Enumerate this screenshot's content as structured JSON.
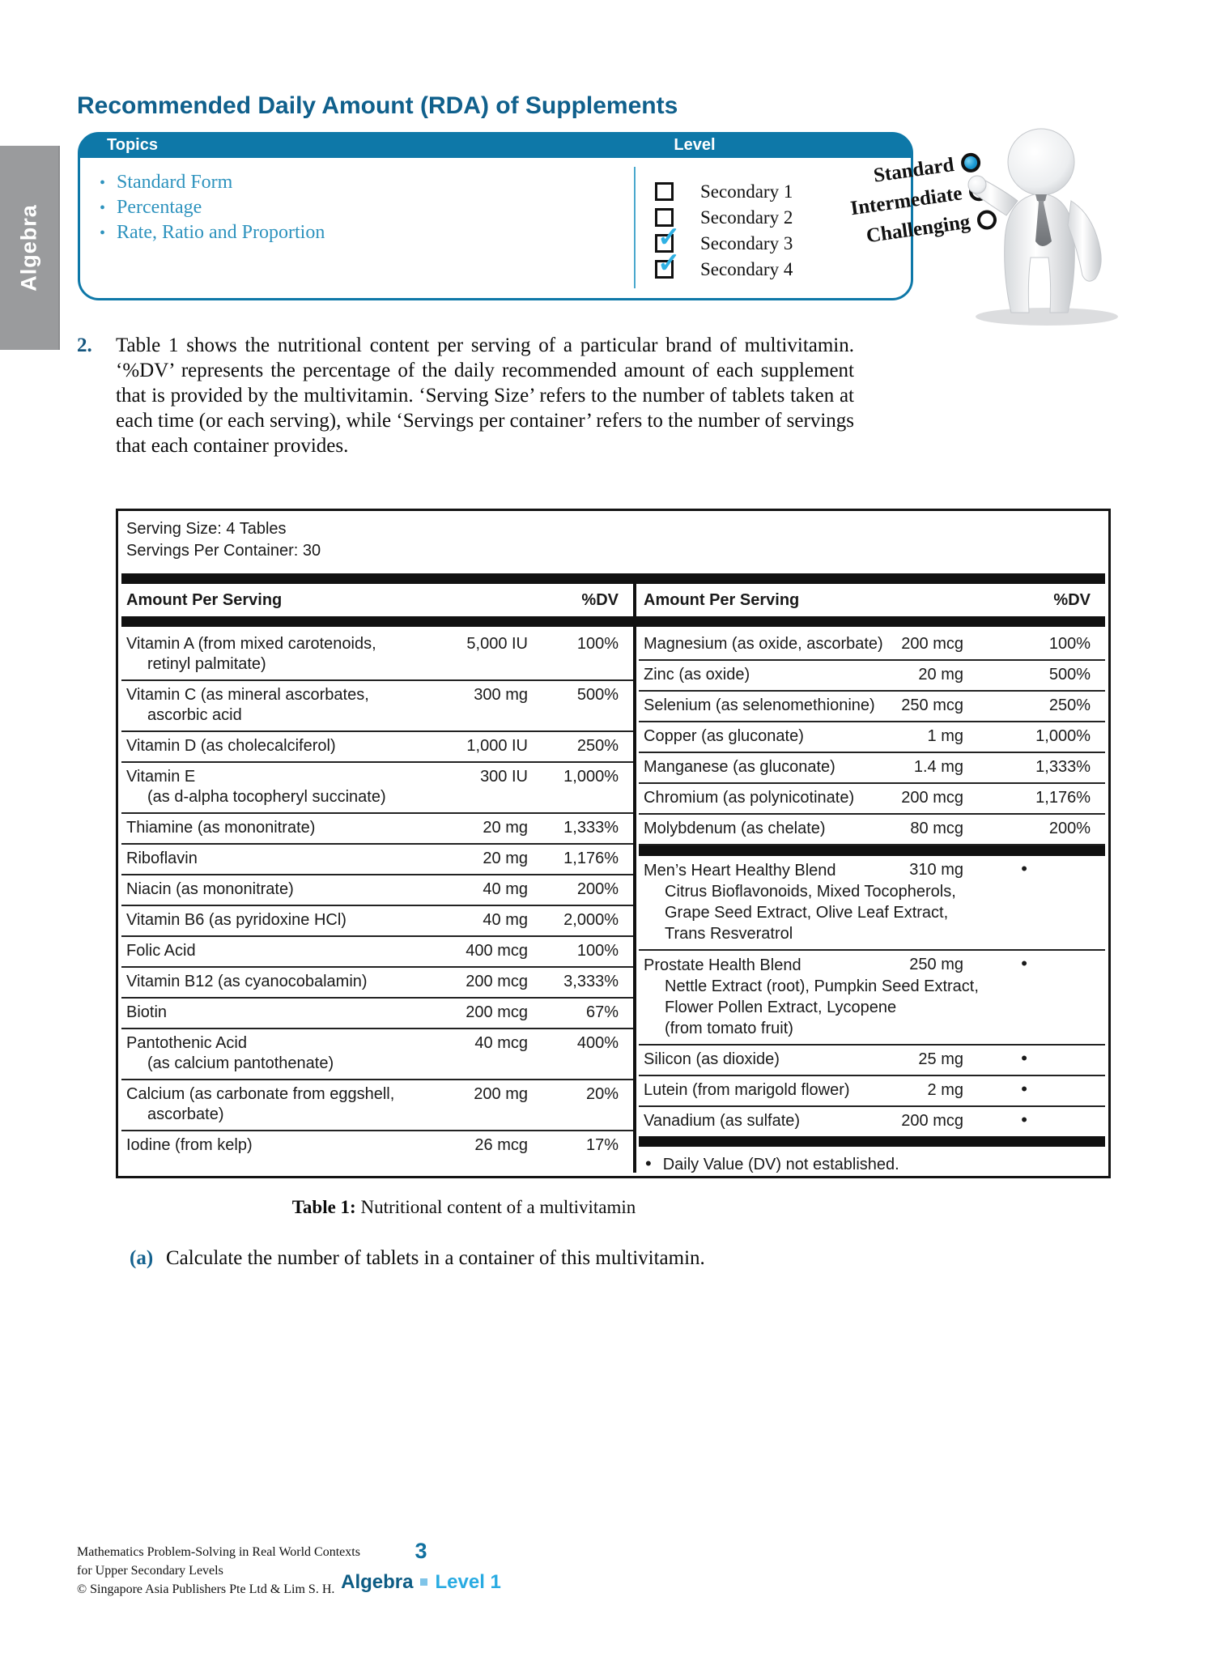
{
  "sidebar": {
    "tab": "Algebra"
  },
  "header": {
    "title": "Recommended Daily Amount (RDA) of Supplements"
  },
  "topics_box": {
    "topics_header": "Topics",
    "level_header": "Level",
    "topics": [
      "Standard Form",
      "Percentage",
      "Rate, Ratio and Proportion"
    ],
    "levels": [
      {
        "label": "Secondary 1",
        "checked": false
      },
      {
        "label": "Secondary 2",
        "checked": false
      },
      {
        "label": "Secondary 3",
        "checked": true
      },
      {
        "label": "Secondary 4",
        "checked": true
      }
    ],
    "difficulty": [
      {
        "label": "Standard",
        "selected": true
      },
      {
        "label": "Intermediate",
        "selected": false
      },
      {
        "label": "Challenging",
        "selected": false
      }
    ],
    "accent_color": "#0e78a8",
    "check_color": "#2fb1e4"
  },
  "problem": {
    "number": "2.",
    "text": "Table 1 shows the nutritional content per serving of a particular brand of multivitamin. ‘%DV’ represents the percentage of the daily recommended amount of each supplement that is provided by the multivitamin. ‘Serving Size’ refers to the number of tablets taken at each time (or each serving), while ‘Servings per container’ refers to the number of servings that each container provides."
  },
  "nutrition_table": {
    "serving_size": "Serving Size: 4 Tables",
    "servings_per_container": "Servings Per Container: 30",
    "column_header": "Amount Per Serving",
    "dv_header": "%DV",
    "left_rows": [
      {
        "name": "Vitamin A (from mixed carotenoids,",
        "sub": [
          "retinyl palmitate)"
        ],
        "amount": "5,000 IU",
        "dv": "100%"
      },
      {
        "name": "Vitamin C (as mineral ascorbates,",
        "sub": [
          "ascorbic acid"
        ],
        "amount": "300 mg",
        "dv": "500%"
      },
      {
        "name": "Vitamin D (as cholecalciferol)",
        "sub": [],
        "amount": "1,000 IU",
        "dv": "250%"
      },
      {
        "name": "Vitamin E",
        "sub": [
          "(as d-alpha tocopheryl succinate)"
        ],
        "amount": "300 IU",
        "dv": "1,000%"
      },
      {
        "name": "Thiamine (as mononitrate)",
        "sub": [],
        "amount": "20 mg",
        "dv": "1,333%"
      },
      {
        "name": "Riboflavin",
        "sub": [],
        "amount": "20 mg",
        "dv": "1,176%"
      },
      {
        "name": "Niacin (as mononitrate)",
        "sub": [],
        "amount": "40 mg",
        "dv": "200%"
      },
      {
        "name": "Vitamin B6 (as pyridoxine HCl)",
        "sub": [],
        "amount": "40 mg",
        "dv": "2,000%"
      },
      {
        "name": "Folic Acid",
        "sub": [],
        "amount": "400 mcg",
        "dv": "100%"
      },
      {
        "name": "Vitamin B12 (as cyanocobalamin)",
        "sub": [],
        "amount": "200 mcg",
        "dv": "3,333%"
      },
      {
        "name": "Biotin",
        "sub": [],
        "amount": "200 mcg",
        "dv": "67%"
      },
      {
        "name": "Pantothenic Acid",
        "sub": [
          "(as calcium pantothenate)"
        ],
        "amount": "40 mcg",
        "dv": "400%"
      },
      {
        "name": "Calcium (as carbonate from eggshell,",
        "sub": [
          "ascorbate)"
        ],
        "amount": "200 mg",
        "dv": "20%"
      },
      {
        "name": "Iodine (from kelp)",
        "sub": [],
        "amount": "26 mcg",
        "dv": "17%"
      }
    ],
    "right_rows": [
      {
        "name": "Magnesium (as oxide, ascorbate)",
        "sub": [],
        "amount": "200 mcg",
        "dv": "100%"
      },
      {
        "name": "Zinc (as oxide)",
        "sub": [],
        "amount": "20 mg",
        "dv": "500%"
      },
      {
        "name": "Selenium (as selenomethionine)",
        "sub": [],
        "amount": "250 mcg",
        "dv": "250%"
      },
      {
        "name": "Copper (as gluconate)",
        "sub": [],
        "amount": "1 mg",
        "dv": "1,000%"
      },
      {
        "name": "Manganese (as gluconate)",
        "sub": [],
        "amount": "1.4 mg",
        "dv": "1,333%"
      },
      {
        "name": "Chromium (as polynicotinate)",
        "sub": [],
        "amount": "200 mcg",
        "dv": "1,176%"
      },
      {
        "name": "Molybdenum (as chelate)",
        "sub": [],
        "amount": "80 mcg",
        "dv": "200%"
      },
      {
        "name": "Men’s Heart Healthy Blend",
        "bar_above": true,
        "sub": [
          "Citrus Bioflavonoids, Mixed Tocopherols,",
          "Grape Seed Extract, Olive Leaf Extract,",
          "Trans Resveratrol"
        ],
        "amount": "310 mg",
        "dv": "•"
      },
      {
        "name": "Prostate Health Blend",
        "sub": [
          "Nettle Extract (root), Pumpkin Seed Extract,",
          "Flower Pollen Extract, Lycopene",
          "(from tomato fruit)"
        ],
        "amount": "250 mg",
        "dv": "•"
      },
      {
        "name": "Silicon (as dioxide)",
        "sub": [],
        "amount": "25 mg",
        "dv": "•"
      },
      {
        "name": "Lutein (from marigold flower)",
        "sub": [],
        "amount": "2 mg",
        "dv": "•"
      },
      {
        "name": "Vanadium (as sulfate)",
        "sub": [],
        "amount": "200 mcg",
        "dv": "•"
      }
    ],
    "footnote_bullet": "•",
    "footnote": "Daily Value (DV) not established."
  },
  "caption": {
    "bold": "Table 1:",
    "text": " Nutritional content of a multivitamin"
  },
  "question": {
    "label": "(a)",
    "text": "Calculate the number of tablets in a container of this multivitamin."
  },
  "footer": {
    "lines": [
      "Mathematics Problem-Solving in Real World Contexts",
      "for Upper Secondary Levels",
      "© Singapore Asia Publishers Pte Ltd & Lim S. H."
    ],
    "page_number": "3",
    "section": "Algebra",
    "level": "Level 1"
  }
}
